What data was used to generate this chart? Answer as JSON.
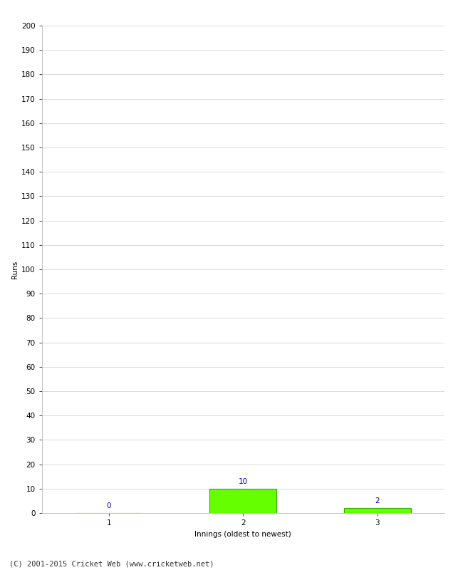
{
  "categories": [
    1,
    2,
    3
  ],
  "values": [
    0,
    10,
    2
  ],
  "bar_color": "#66ff00",
  "bar_edge_color": "#33aa00",
  "ylabel": "Runs",
  "xlabel": "Innings (oldest to newest)",
  "ylim": [
    0,
    200
  ],
  "yticks": [
    0,
    10,
    20,
    30,
    40,
    50,
    60,
    70,
    80,
    90,
    100,
    110,
    120,
    130,
    140,
    150,
    160,
    170,
    180,
    190,
    200
  ],
  "xticks": [
    1,
    2,
    3
  ],
  "annotation_color": "#0000cc",
  "annotation_fontsize": 7.5,
  "axis_label_fontsize": 7.5,
  "tick_fontsize": 7.5,
  "footer_text": "(C) 2001-2015 Cricket Web (www.cricketweb.net)",
  "footer_fontsize": 7.5,
  "background_color": "#ffffff",
  "grid_color": "#cccccc",
  "bar_width": 0.5,
  "xlim": [
    0.5,
    3.5
  ]
}
